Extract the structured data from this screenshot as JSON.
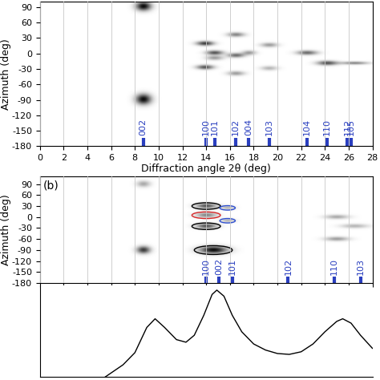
{
  "chart_data": [
    {
      "type": "image",
      "xlabel": "Diffraction angle 2θ (deg)",
      "ylabel": "Azimuth (deg)",
      "xlim": [
        0,
        28
      ],
      "ylim": [
        -180,
        100
      ],
      "xticks": [
        0,
        2,
        4,
        6,
        8,
        10,
        12,
        14,
        16,
        18,
        20,
        22,
        24,
        26,
        28
      ],
      "yticks": [
        -180,
        -150,
        -120,
        -90,
        -60,
        -30,
        0,
        30,
        60,
        90
      ],
      "grid": true,
      "tick_labels": true,
      "color": "#2a3fbf",
      "peaks": [
        {
          "label": "002",
          "x": 8.7
        },
        {
          "label": "100",
          "x": 14.0
        },
        {
          "label": "101",
          "x": 14.7
        },
        {
          "label": "102",
          "x": 16.5
        },
        {
          "label": "004",
          "x": 17.6
        },
        {
          "label": "103",
          "x": 19.3
        },
        {
          "label": "104",
          "x": 22.5
        },
        {
          "label": "110",
          "x": 24.2
        },
        {
          "label": "112",
          "x": 25.9
        },
        {
          "label": "105",
          "x": 26.2
        }
      ],
      "spots": [
        {
          "x": 8.7,
          "y": 90,
          "intensity": 1.0,
          "x_width": 0.45,
          "y_width": 6
        },
        {
          "x": 8.7,
          "y": -90,
          "intensity": 1.0,
          "x_width": 0.45,
          "y_width": 7
        },
        {
          "x": 13.9,
          "y": 18,
          "intensity": 0.8,
          "x_width": 0.5,
          "y_width": 3
        },
        {
          "x": 14.7,
          "y": 0,
          "intensity": 0.7,
          "x_width": 0.5,
          "y_width": 3
        },
        {
          "x": 13.9,
          "y": -28,
          "intensity": 0.7,
          "x_width": 0.5,
          "y_width": 3
        },
        {
          "x": 14.7,
          "y": -10,
          "intensity": 0.4,
          "x_width": 0.5,
          "y_width": 3
        },
        {
          "x": 16.5,
          "y": 35,
          "intensity": 0.5,
          "x_width": 0.5,
          "y_width": 3
        },
        {
          "x": 16.5,
          "y": -5,
          "intensity": 0.6,
          "x_width": 0.5,
          "y_width": 3
        },
        {
          "x": 16.5,
          "y": -40,
          "intensity": 0.4,
          "x_width": 0.5,
          "y_width": 3
        },
        {
          "x": 17.6,
          "y": 0,
          "intensity": 0.4,
          "x_width": 0.4,
          "y_width": 3
        },
        {
          "x": 19.3,
          "y": 15,
          "intensity": 0.4,
          "x_width": 0.5,
          "y_width": 3
        },
        {
          "x": 19.3,
          "y": -30,
          "intensity": 0.3,
          "x_width": 0.5,
          "y_width": 3
        },
        {
          "x": 22.5,
          "y": 0,
          "intensity": 0.6,
          "x_width": 0.6,
          "y_width": 3
        },
        {
          "x": 24.2,
          "y": -20,
          "intensity": 0.7,
          "x_width": 0.6,
          "y_width": 3
        },
        {
          "x": 26.5,
          "y": -20,
          "intensity": 0.5,
          "x_width": 0.8,
          "y_width": 2
        }
      ]
    },
    {
      "type": "image",
      "annotation": "(b)",
      "ylabel": "Azimuth (deg)",
      "xlim": [
        0,
        28
      ],
      "ylim": [
        -180,
        110
      ],
      "xticks": [
        0,
        2,
        4,
        6,
        8,
        10,
        12,
        14,
        16,
        18,
        20,
        22,
        24,
        26,
        28
      ],
      "yticks": [
        -180,
        -150,
        -120,
        -90,
        -60,
        -30,
        0,
        30,
        60,
        90
      ],
      "grid": true,
      "tick_labels": "y",
      "color": "#2a3fbf",
      "peaks": [
        {
          "label": "100",
          "x": 14.0
        },
        {
          "label": "002",
          "x": 15.1
        },
        {
          "label": "101",
          "x": 16.2
        },
        {
          "label": "102",
          "x": 20.9
        },
        {
          "label": "110",
          "x": 24.8
        },
        {
          "label": "103",
          "x": 27.0
        }
      ],
      "spots": [
        {
          "x": 8.7,
          "y": 90,
          "intensity": 0.35,
          "x_width": 0.4,
          "y_width": 6
        },
        {
          "x": 8.7,
          "y": -90,
          "intensity": 0.8,
          "x_width": 0.4,
          "y_width": 7
        },
        {
          "x": 14.0,
          "y": 30,
          "intensity": 0.7,
          "x_width": 0.6,
          "y_width": 5
        },
        {
          "x": 14.0,
          "y": 5,
          "intensity": 0.5,
          "x_width": 0.6,
          "y_width": 5
        },
        {
          "x": 14.0,
          "y": -25,
          "intensity": 0.7,
          "x_width": 0.6,
          "y_width": 5
        },
        {
          "x": 14.6,
          "y": -90,
          "intensity": 1.0,
          "x_width": 0.8,
          "y_width": 7
        },
        {
          "x": 15.8,
          "y": 25,
          "intensity": 0.3,
          "x_width": 0.4,
          "y_width": 4
        },
        {
          "x": 15.8,
          "y": -10,
          "intensity": 0.3,
          "x_width": 0.4,
          "y_width": 4
        },
        {
          "x": 25.0,
          "y": 0,
          "intensity": 0.35,
          "x_width": 0.7,
          "y_width": 4
        },
        {
          "x": 25.0,
          "y": -60,
          "intensity": 0.4,
          "x_width": 0.7,
          "y_width": 4
        },
        {
          "x": 26.5,
          "y": -25,
          "intensity": 0.3,
          "x_width": 0.8,
          "y_width": 4
        }
      ],
      "circles": [
        {
          "x": 14.0,
          "y": 30,
          "x_width": 2.4,
          "y_width": 18,
          "color": "#000000"
        },
        {
          "x": 14.0,
          "y": 5,
          "x_width": 2.4,
          "y_width": 18,
          "color": "#d62728"
        },
        {
          "x": 14.0,
          "y": -25,
          "x_width": 2.4,
          "y_width": 18,
          "color": "#000000"
        },
        {
          "x": 14.6,
          "y": -90,
          "x_width": 3.2,
          "y_width": 24,
          "color": "#000000"
        },
        {
          "x": 15.8,
          "y": 25,
          "x_width": 1.3,
          "y_width": 12,
          "color": "#3050d0"
        },
        {
          "x": 15.8,
          "y": -10,
          "x_width": 1.3,
          "y_width": 12,
          "color": "#3050d0"
        }
      ]
    },
    {
      "type": "line",
      "xlim": [
        0,
        28
      ],
      "ylim": [
        0,
        105
      ],
      "xticks": [],
      "yticks": [],
      "tick_labels": false,
      "color": "#000000",
      "x": [
        5.5,
        7,
        8,
        9,
        9.7,
        10.5,
        11.5,
        12.3,
        13,
        13.8,
        14.5,
        14.9,
        15.5,
        16.2,
        17,
        18,
        19,
        20,
        21,
        22,
        23,
        24,
        25,
        25.5,
        26.2,
        27,
        28
      ],
      "values": [
        0,
        14,
        28,
        57,
        67,
        57,
        43,
        40,
        48,
        71,
        95,
        100,
        93,
        71,
        52,
        38,
        31,
        27,
        26,
        29,
        38,
        52,
        64,
        67,
        62,
        48,
        33
      ]
    }
  ]
}
